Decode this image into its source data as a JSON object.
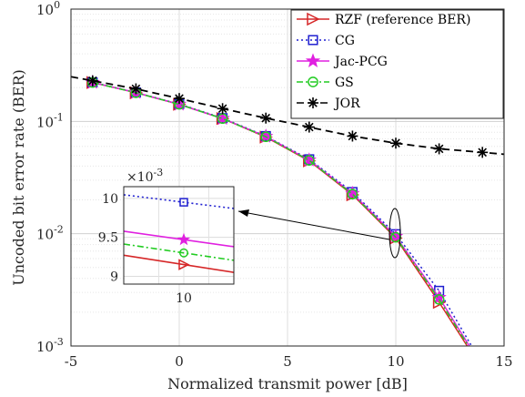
{
  "chart_data": {
    "type": "line",
    "xlabel": "Normalized transmit power [dB]",
    "ylabel": "Uncoded bit error rate (BER)",
    "xlim": [
      -5,
      15
    ],
    "ylim": [
      0.001,
      1
    ],
    "yscale": "log",
    "grid": true,
    "legend_position": "top-right",
    "x_ticks": [
      "-5",
      "0",
      "5",
      "10",
      "15"
    ],
    "y_ticks": [
      {
        "value": 0.001,
        "base": "10",
        "exp": "-3"
      },
      {
        "value": 0.01,
        "base": "10",
        "exp": "-2"
      },
      {
        "value": 0.1,
        "base": "10",
        "exp": "-1"
      },
      {
        "value": 1,
        "base": "10",
        "exp": "0"
      }
    ],
    "series": [
      {
        "name": "RZF (reference BER)",
        "color": "#d62728",
        "marker": "triangle-right",
        "dash": "solid",
        "x": [
          -4,
          -2,
          0,
          2,
          4,
          6,
          8,
          10,
          12,
          13.3
        ],
        "y": [
          0.222,
          0.18,
          0.142,
          0.106,
          0.0725,
          0.0445,
          0.0222,
          0.00915,
          0.00245,
          0.001
        ]
      },
      {
        "name": "CG",
        "color": "#1f1fd0",
        "marker": "square",
        "dash": "dotted",
        "x": [
          -4,
          -2,
          0,
          2,
          4,
          6,
          8,
          10,
          12,
          13.5
        ],
        "y": [
          0.223,
          0.181,
          0.143,
          0.107,
          0.074,
          0.046,
          0.0235,
          0.0099,
          0.0031,
          0.001
        ]
      },
      {
        "name": "Jac-PCG",
        "color": "#e020e0",
        "marker": "star",
        "dash": "solid",
        "x": [
          -4,
          -2,
          0,
          2,
          4,
          6,
          8,
          10,
          12,
          13.4
        ],
        "y": [
          0.222,
          0.181,
          0.142,
          0.106,
          0.0735,
          0.0452,
          0.0228,
          0.00945,
          0.0027,
          0.001
        ]
      },
      {
        "name": "GS",
        "color": "#22cc22",
        "marker": "circle",
        "dash": "dashdot",
        "x": [
          -4,
          -2,
          0,
          2,
          4,
          6,
          8,
          10,
          12,
          13.35
        ],
        "y": [
          0.222,
          0.18,
          0.142,
          0.106,
          0.073,
          0.045,
          0.0225,
          0.0093,
          0.0026,
          0.001
        ]
      },
      {
        "name": "JOR",
        "color": "#000000",
        "marker": "asterisk",
        "dash": "dashed",
        "x": [
          -5,
          -4,
          -2,
          0,
          2,
          4,
          6,
          8,
          10,
          12,
          14,
          15
        ],
        "y": [
          0.25,
          0.23,
          0.195,
          0.16,
          0.13,
          0.107,
          0.089,
          0.074,
          0.064,
          0.057,
          0.053,
          0.051
        ]
      }
    ],
    "inset": {
      "xlim": [
        9.88,
        10.1
      ],
      "ylim": [
        8.9,
        10.15
      ],
      "x_ticks": [
        "10"
      ],
      "y_ticks": [
        "9",
        "9.5",
        "10"
      ],
      "y_scale_label_base": "×10",
      "y_scale_label_exp": "-3",
      "series": [
        {
          "name": "RZF (reference BER)",
          "y_at_10": 9.15,
          "slope": -1.0
        },
        {
          "name": "CG",
          "y_at_10": 9.95,
          "slope": -0.8
        },
        {
          "name": "Jac-PCG",
          "y_at_10": 9.47,
          "slope": -0.9
        },
        {
          "name": "GS",
          "y_at_10": 9.3,
          "slope": -0.95
        }
      ]
    }
  }
}
